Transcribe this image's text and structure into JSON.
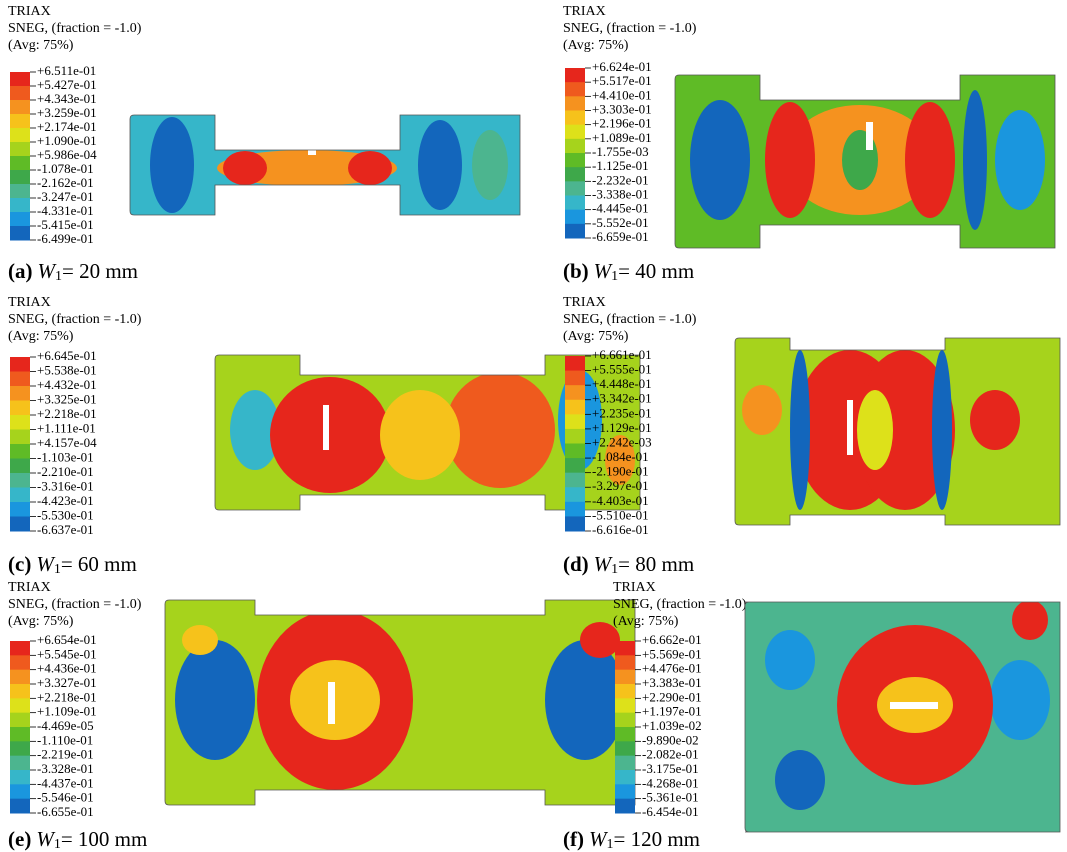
{
  "panels": [
    {
      "header": [
        "TRIAX",
        "SNEG, (fraction = -1.0)",
        "(Avg: 75%)"
      ],
      "legend": [
        "+6.511e-01",
        "+5.427e-01",
        "+4.343e-01",
        "+3.259e-01",
        "+2.174e-01",
        "+1.090e-01",
        "+5.986e-04",
        "-1.078e-01",
        "-2.162e-01",
        "-3.247e-01",
        "-4.331e-01",
        "-5.415e-01",
        "-6.499e-01"
      ],
      "caption": {
        "label": "(a)",
        "variable": "W",
        "subscript": "1",
        "text": "= 20 mm"
      }
    },
    {
      "header": [
        "TRIAX",
        "SNEG, (fraction = -1.0)",
        "(Avg: 75%)"
      ],
      "legend": [
        "+6.624e-01",
        "+5.517e-01",
        "+4.410e-01",
        "+3.303e-01",
        "+2.196e-01",
        "+1.089e-01",
        "-1.755e-03",
        "-1.125e-01",
        "-2.232e-01",
        "-3.338e-01",
        "-4.445e-01",
        "-5.552e-01",
        "-6.659e-01"
      ],
      "caption": {
        "label": "(b)",
        "variable": "W",
        "subscript": "1",
        "text": "= 40 mm"
      }
    },
    {
      "header": [
        "TRIAX",
        "SNEG, (fraction = -1.0)",
        "(Avg: 75%)"
      ],
      "legend": [
        "+6.645e-01",
        "+5.538e-01",
        "+4.432e-01",
        "+3.325e-01",
        "+2.218e-01",
        "+1.111e-01",
        "+4.157e-04",
        "-1.103e-01",
        "-2.210e-01",
        "-3.316e-01",
        "-4.423e-01",
        "-5.530e-01",
        "-6.637e-01"
      ],
      "caption": {
        "label": "(c)",
        "variable": "W",
        "subscript": "1",
        "text": "= 60 mm"
      }
    },
    {
      "header": [
        "TRIAX",
        "SNEG, (fraction = -1.0)",
        "(Avg: 75%)"
      ],
      "legend": [
        "+6.661e-01",
        "+5.555e-01",
        "+4.448e-01",
        "+3.342e-01",
        "+2.235e-01",
        "+1.129e-01",
        "+2.242e-03",
        "-1.084e-01",
        "-2.190e-01",
        "-3.297e-01",
        "-4.403e-01",
        "-5.510e-01",
        "-6.616e-01"
      ],
      "caption": {
        "label": "(d)",
        "variable": "W",
        "subscript": "1",
        "text": "= 80 mm"
      }
    },
    {
      "header": [
        "TRIAX",
        "SNEG, (fraction = -1.0)",
        "(Avg: 75%)"
      ],
      "legend": [
        "+6.654e-01",
        "+5.545e-01",
        "+4.436e-01",
        "+3.327e-01",
        "+2.218e-01",
        "+1.109e-01",
        "-4.469e-05",
        "-1.110e-01",
        "-2.219e-01",
        "-3.328e-01",
        "-4.437e-01",
        "-5.546e-01",
        "-6.655e-01"
      ],
      "caption": {
        "label": "(e)",
        "variable": "W",
        "subscript": "1",
        "text": "= 100 mm"
      }
    },
    {
      "header": [
        "TRIAX",
        "SNEG, (fraction = -1.0)",
        "(Avg: 75%)"
      ],
      "legend": [
        "+6.662e-01",
        "+5.569e-01",
        "+4.476e-01",
        "+3.383e-01",
        "+2.290e-01",
        "+1.197e-01",
        "+1.039e-02",
        "-9.890e-02",
        "-2.082e-01",
        "-3.175e-01",
        "-4.268e-01",
        "-5.361e-01",
        "-6.454e-01"
      ],
      "caption": {
        "label": "(f)",
        "variable": "W",
        "subscript": "1",
        "text": "= 120 mm"
      }
    }
  ]
}
